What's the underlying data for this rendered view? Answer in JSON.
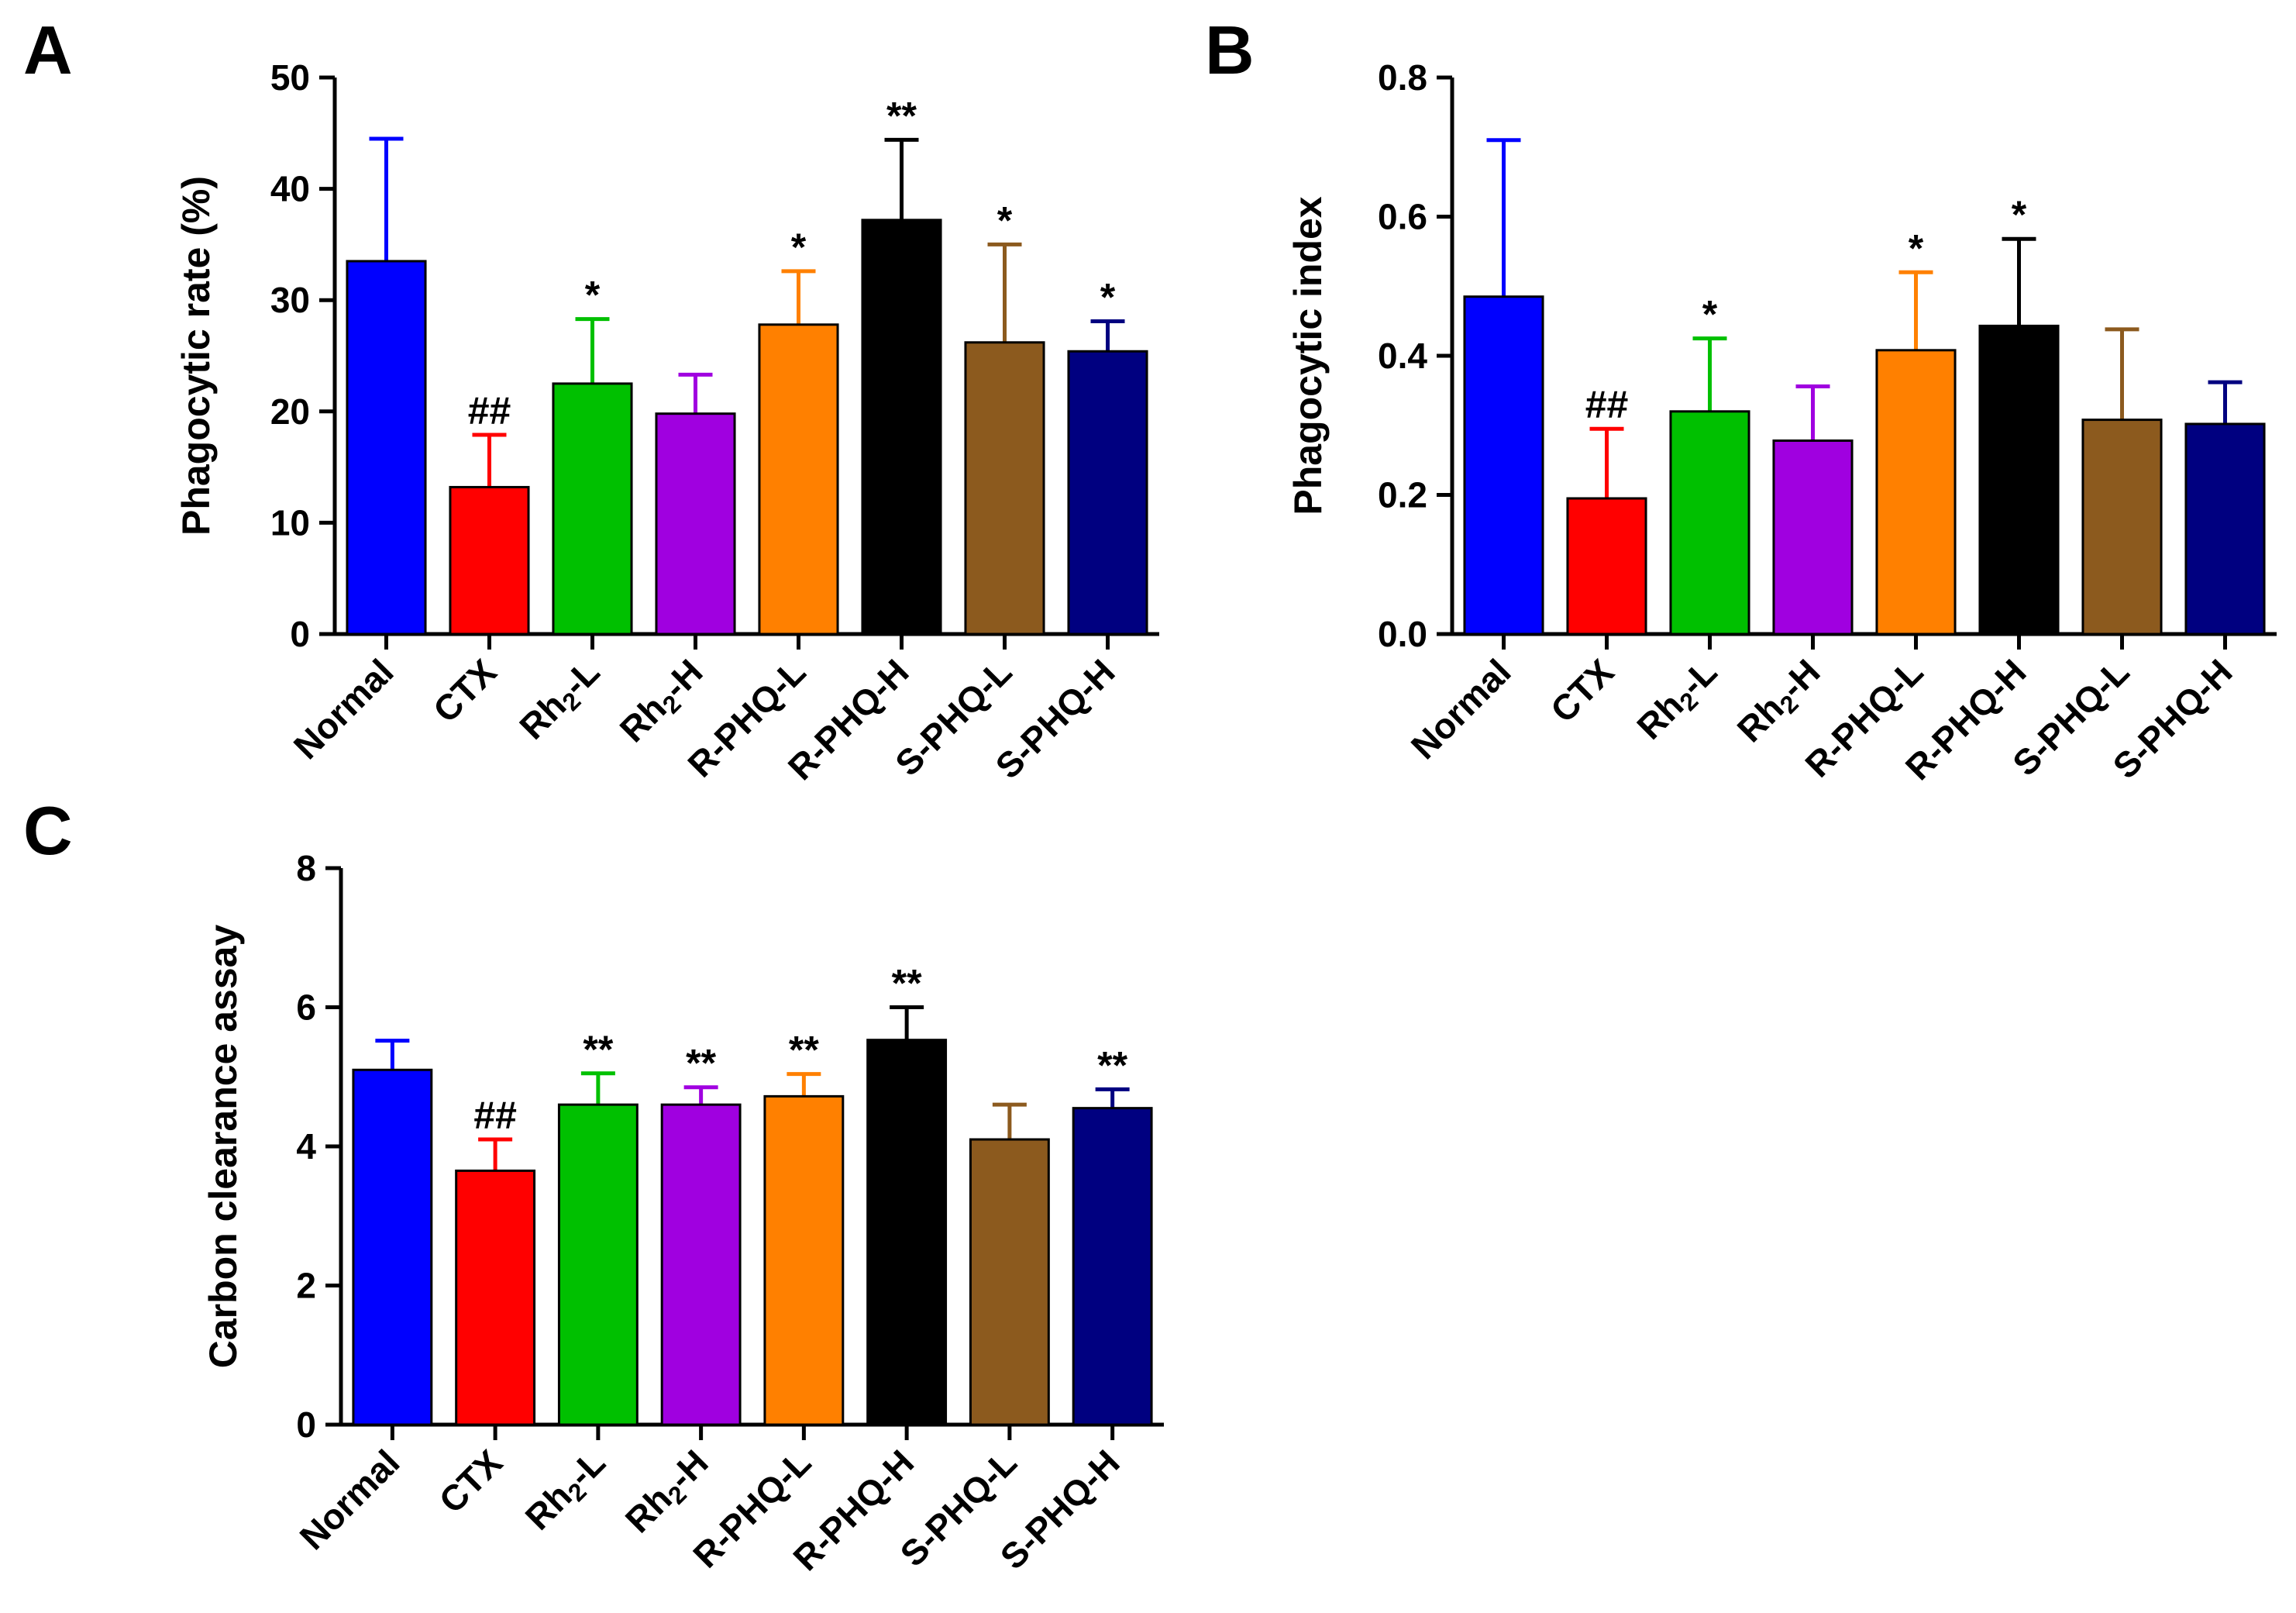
{
  "colors": {
    "Normal": "#0000FF",
    "CTX": "#FF0000",
    "Rh2-L": "#00C000",
    "Rh2-H": "#A000E0",
    "R-PHQ-L": "#FF8000",
    "R-PHQ-H": "#000000",
    "S-PHQ-L": "#8C5A1E",
    "S-PHQ-H": "#000080",
    "axis": "#000000"
  },
  "chart_data": [
    {
      "panel": "A",
      "type": "bar",
      "title": "",
      "xlabel": "",
      "ylabel": "Phagocytic rate (%)",
      "ylim": [
        0,
        50
      ],
      "yticks": [
        "0",
        "10",
        "20",
        "30",
        "40",
        "50"
      ],
      "categories": [
        "Normal",
        "CTX",
        "Rh2-L",
        "Rh2-H",
        "R-PHQ-L",
        "R-PHQ-H",
        "S-PHQ-L",
        "S-PHQ-H"
      ],
      "values": [
        33.5,
        13.2,
        22.5,
        19.8,
        27.8,
        37.2,
        26.2,
        25.4
      ],
      "errors": [
        11.0,
        4.7,
        5.8,
        3.5,
        4.8,
        7.2,
        8.8,
        2.7
      ],
      "annotations": [
        "",
        "##",
        "*",
        "",
        "*",
        "**",
        "*",
        "*"
      ]
    },
    {
      "panel": "B",
      "type": "bar",
      "title": "",
      "xlabel": "",
      "ylabel": "Phagocytic index",
      "ylim": [
        0,
        0.8
      ],
      "yticks": [
        "0.0",
        "0.2",
        "0.4",
        "0.6",
        "0.8"
      ],
      "categories": [
        "Normal",
        "CTX",
        "Rh2-L",
        "Rh2-H",
        "R-PHQ-L",
        "R-PHQ-H",
        "S-PHQ-L",
        "S-PHQ-H"
      ],
      "values": [
        0.485,
        0.195,
        0.32,
        0.278,
        0.408,
        0.443,
        0.308,
        0.302
      ],
      "errors": [
        0.225,
        0.1,
        0.105,
        0.078,
        0.112,
        0.125,
        0.13,
        0.06
      ],
      "annotations": [
        "",
        "##",
        "*",
        "",
        "*",
        "*",
        "",
        ""
      ]
    },
    {
      "panel": "C",
      "type": "bar",
      "title": "",
      "xlabel": "",
      "ylabel": "Carbon clearance assay",
      "ylim": [
        0,
        8
      ],
      "yticks": [
        "0",
        "2",
        "4",
        "6",
        "8"
      ],
      "categories": [
        "Normal",
        "CTX",
        "Rh2-L",
        "Rh2-H",
        "R-PHQ-L",
        "R-PHQ-H",
        "S-PHQ-L",
        "S-PHQ-H"
      ],
      "values": [
        5.1,
        3.65,
        4.6,
        4.6,
        4.72,
        5.53,
        4.1,
        4.55
      ],
      "errors": [
        0.42,
        0.45,
        0.45,
        0.25,
        0.32,
        0.47,
        0.5,
        0.27
      ],
      "annotations": [
        "",
        "##",
        "**",
        "**",
        "**",
        "**",
        "",
        "**"
      ]
    }
  ]
}
